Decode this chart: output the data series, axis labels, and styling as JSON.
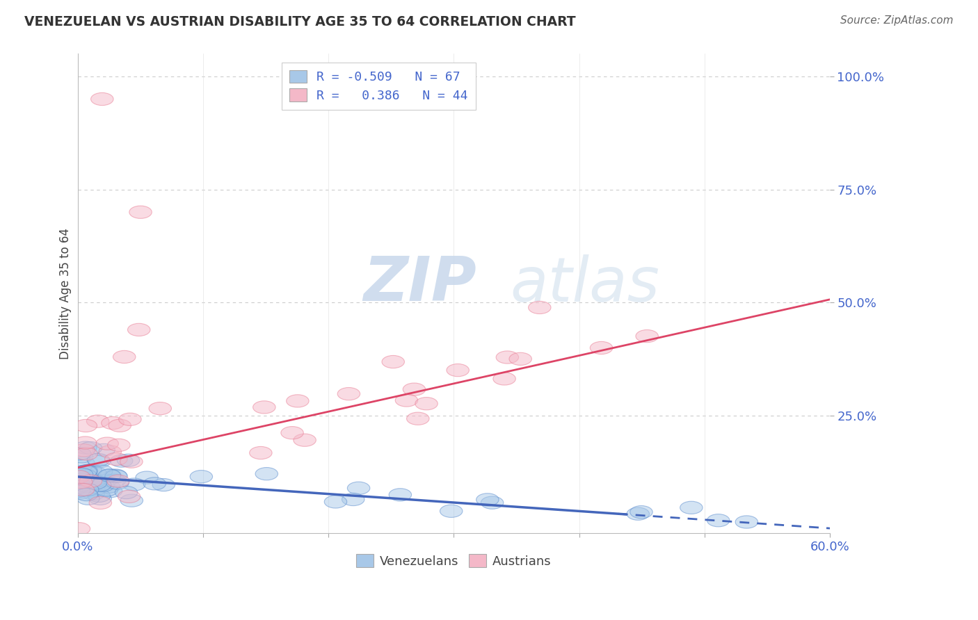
{
  "title": "VENEZUELAN VS AUSTRIAN DISABILITY AGE 35 TO 64 CORRELATION CHART",
  "source": "Source: ZipAtlas.com",
  "ylabel": "Disability Age 35 to 64",
  "xlim": [
    0.0,
    0.6
  ],
  "ylim": [
    -0.01,
    1.05
  ],
  "ytick_vals": [
    0.25,
    0.5,
    0.75,
    1.0
  ],
  "ytick_labels": [
    "25.0%",
    "50.0%",
    "75.0%",
    "100.0%"
  ],
  "xtick_vals": [
    0.0,
    0.1,
    0.2,
    0.3,
    0.4,
    0.5,
    0.6
  ],
  "xtick_labels": [
    "0.0%",
    "",
    "",
    "",
    "",
    "",
    "60.0%"
  ],
  "legend_r_blue": "-0.509",
  "legend_n_blue": "67",
  "legend_r_pink": "0.386",
  "legend_n_pink": "44",
  "blue_color": "#a8c8e8",
  "pink_color": "#f4b8c8",
  "blue_edge_color": "#5588cc",
  "pink_edge_color": "#e87890",
  "blue_line_color": "#4466bb",
  "pink_line_color": "#dd4466",
  "grid_color": "#cccccc",
  "title_color": "#333333",
  "tick_color": "#4466cc",
  "ylabel_color": "#444444",
  "source_color": "#666666",
  "watermark_color": "#dde8f4",
  "blue_intercept": 0.115,
  "blue_slope": -0.19,
  "pink_intercept": 0.135,
  "pink_slope": 0.62
}
